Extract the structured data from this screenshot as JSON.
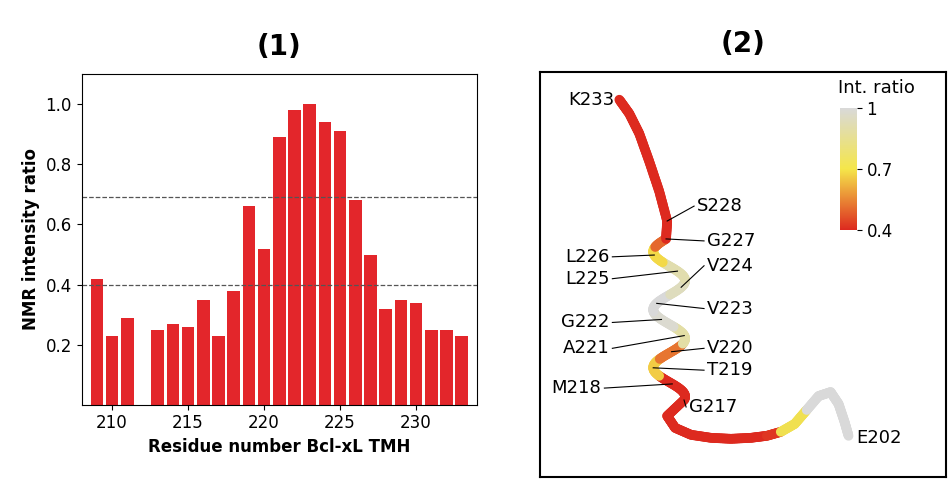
{
  "chart_data": {
    "type": "bar",
    "title": "(1)",
    "x": [
      209,
      210,
      211,
      212,
      213,
      214,
      215,
      216,
      217,
      218,
      219,
      220,
      221,
      222,
      223,
      224,
      225,
      226,
      227,
      228,
      229,
      230,
      231,
      232,
      233
    ],
    "values": [
      0.42,
      0.23,
      0.29,
      null,
      0.25,
      0.27,
      0.26,
      0.35,
      0.23,
      0.38,
      0.66,
      0.52,
      0.89,
      0.98,
      1.0,
      0.94,
      0.91,
      0.68,
      0.5,
      0.32,
      0.35,
      0.34,
      0.25,
      0.25,
      0.23
    ],
    "color": "#e3262b",
    "xlabel": "Residue number Bcl-xL TMH",
    "ylabel": "NMR intensity ratio",
    "xlim": [
      208,
      234
    ],
    "xticks": [
      210,
      215,
      220,
      225,
      230
    ],
    "ylim": [
      0,
      1.1
    ],
    "yticks": [
      0.2,
      0.4,
      0.6,
      0.8,
      1.0
    ],
    "reference_lines": [
      0.4,
      0.69
    ]
  },
  "diagram": {
    "title": "(2)",
    "residue_labels": [
      "K233",
      "S228",
      "G227",
      "L226",
      "V224",
      "L225",
      "V223",
      "G222",
      "A221",
      "V220",
      "M218",
      "T219",
      "G217",
      "E202"
    ],
    "colorbar": {
      "label": "Int. ratio",
      "range": [
        0.4,
        1
      ],
      "ticks": [
        1,
        0.7,
        0.4
      ]
    }
  }
}
